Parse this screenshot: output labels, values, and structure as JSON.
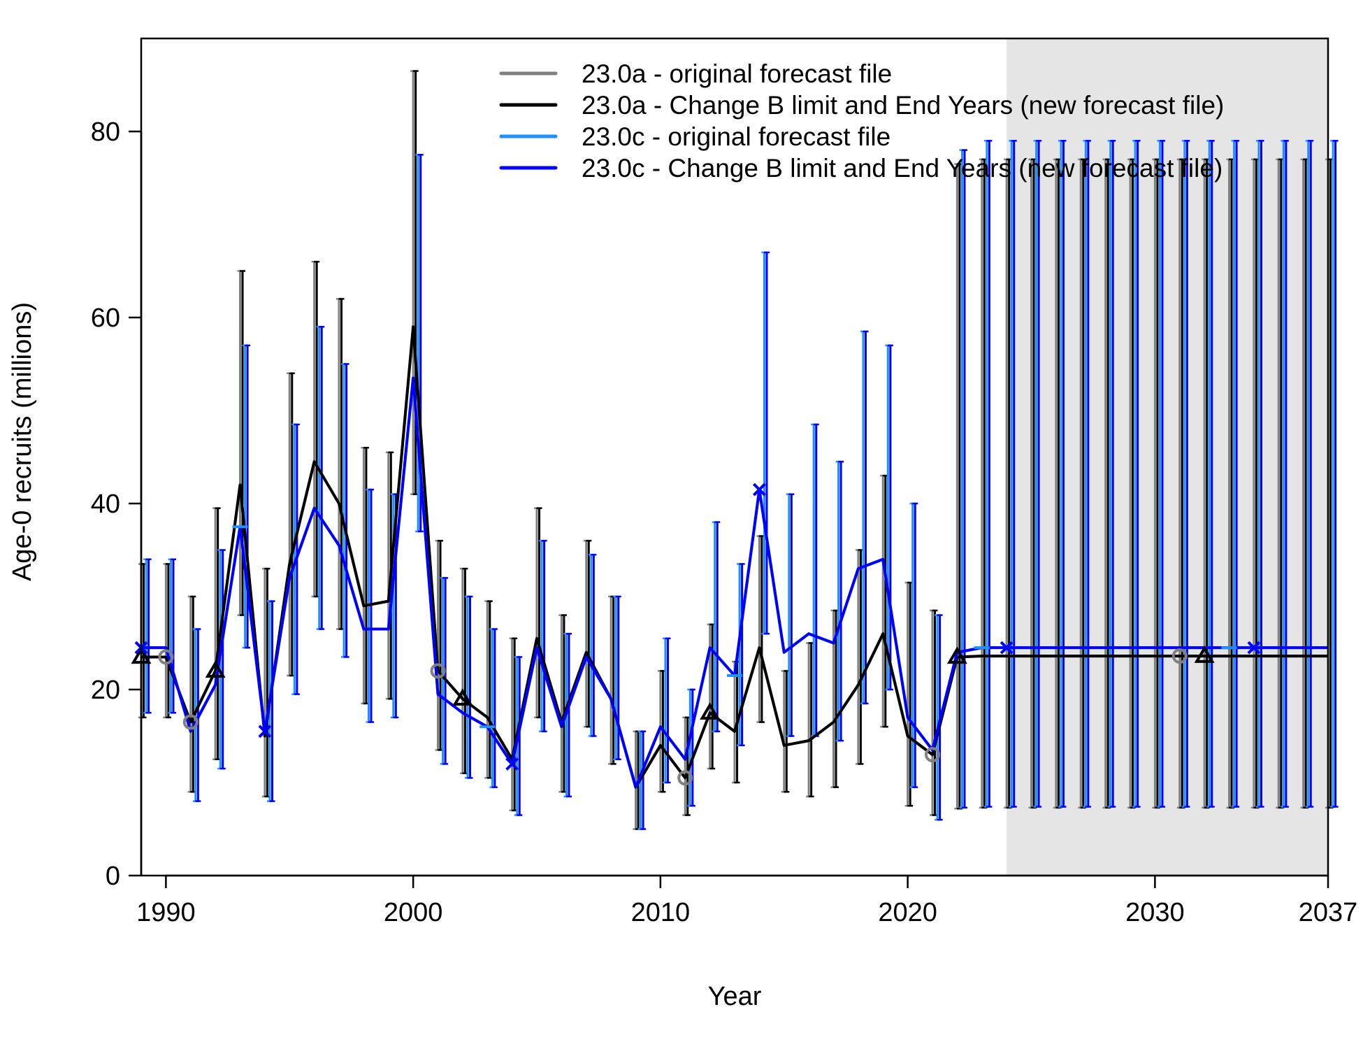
{
  "chart_data": {
    "type": "line",
    "title": "",
    "xlabel": "Year",
    "ylabel": "Age-0 recruits (millions)",
    "xlim": [
      1989,
      2037
    ],
    "ylim": [
      0,
      90
    ],
    "xticks": [
      1990,
      2000,
      2010,
      2020,
      2030,
      2037
    ],
    "xtick_labels": [
      "1990",
      "2000",
      "2010",
      "2020",
      "2030",
      "2037"
    ],
    "yticks": [
      0,
      20,
      40,
      60,
      80
    ],
    "ytick_labels": [
      "0",
      "20",
      "40",
      "60",
      "80"
    ],
    "forecast_region": {
      "from": 2024,
      "to": 2037,
      "color": "#e5e5e5"
    },
    "legend_position": "top-right",
    "grid": false,
    "series": [
      {
        "name": "23.0a - original forecast file",
        "color": "#808080",
        "marker": "circle",
        "marker_years": [
          1990,
          1991,
          2001,
          2011,
          2021,
          2031
        ],
        "offset": 0.0,
        "years": [
          1989,
          1990,
          1991,
          1992,
          1993,
          1994,
          1995,
          1996,
          1997,
          1998,
          1999,
          2000,
          2001,
          2002,
          2003,
          2004,
          2005,
          2006,
          2007,
          2008,
          2009,
          2010,
          2011,
          2012,
          2013,
          2014,
          2015,
          2016,
          2017,
          2018,
          2019,
          2020,
          2021,
          2022,
          2023,
          2024,
          2025,
          2026,
          2027,
          2028,
          2029,
          2030,
          2031,
          2032,
          2033,
          2034,
          2035,
          2036,
          2037
        ],
        "values": [
          23.5,
          23.5,
          16.5,
          22.0,
          42.0,
          15.0,
          33.5,
          44.5,
          40.0,
          29.0,
          29.5,
          59.0,
          22.0,
          19.0,
          17.0,
          12.5,
          25.5,
          16.5,
          24.0,
          19.0,
          9.5,
          14.0,
          10.5,
          17.5,
          15.5,
          24.5,
          14.0,
          14.5,
          16.5,
          20.5,
          26.0,
          15.0,
          13.0,
          23.5,
          23.6,
          23.6,
          23.6,
          23.6,
          23.6,
          23.6,
          23.6,
          23.6,
          23.6,
          23.6,
          23.6,
          23.6,
          23.6,
          23.6,
          23.6
        ],
        "lower": [
          17.0,
          17.0,
          9.0,
          12.5,
          28.0,
          8.5,
          21.5,
          30.0,
          26.5,
          18.5,
          19.0,
          41.0,
          13.5,
          11.0,
          10.5,
          7.0,
          17.0,
          9.0,
          16.0,
          12.0,
          5.0,
          9.0,
          6.5,
          11.5,
          10.0,
          16.5,
          9.0,
          8.5,
          9.5,
          12.0,
          16.0,
          7.5,
          6.5,
          7.2,
          7.3,
          7.3,
          7.3,
          7.3,
          7.3,
          7.3,
          7.3,
          7.3,
          7.3,
          7.3,
          7.3,
          7.3,
          7.3,
          7.3,
          7.3
        ],
        "upper": [
          33.5,
          33.5,
          30.0,
          39.5,
          65.0,
          33.0,
          54.0,
          66.0,
          62.0,
          46.0,
          45.5,
          86.5,
          36.0,
          33.0,
          29.5,
          25.5,
          39.5,
          28.0,
          36.0,
          30.0,
          15.5,
          22.0,
          17.0,
          27.0,
          23.0,
          36.5,
          22.0,
          25.0,
          28.5,
          35.0,
          43.0,
          31.5,
          28.5,
          76.5,
          77.0,
          77.0,
          77.0,
          77.0,
          77.0,
          77.0,
          77.0,
          77.0,
          77.0,
          77.0,
          77.0,
          77.0,
          77.0,
          77.0,
          77.0
        ]
      },
      {
        "name": "23.0a - Change B limit and End Years (new forecast file)",
        "color": "#000000",
        "marker": "triangle",
        "marker_years": [
          1989,
          1992,
          2002,
          2012,
          2022,
          2032
        ],
        "offset": 0.1,
        "years": [
          1989,
          1990,
          1991,
          1992,
          1993,
          1994,
          1995,
          1996,
          1997,
          1998,
          1999,
          2000,
          2001,
          2002,
          2003,
          2004,
          2005,
          2006,
          2007,
          2008,
          2009,
          2010,
          2011,
          2012,
          2013,
          2014,
          2015,
          2016,
          2017,
          2018,
          2019,
          2020,
          2021,
          2022,
          2023,
          2024,
          2025,
          2026,
          2027,
          2028,
          2029,
          2030,
          2031,
          2032,
          2033,
          2034,
          2035,
          2036,
          2037
        ],
        "values": [
          23.5,
          23.5,
          16.5,
          22.0,
          42.0,
          15.0,
          33.5,
          44.5,
          40.0,
          29.0,
          29.5,
          59.0,
          22.0,
          19.0,
          17.0,
          12.5,
          25.5,
          16.5,
          24.0,
          19.0,
          9.5,
          14.0,
          10.5,
          17.5,
          15.5,
          24.5,
          14.0,
          14.5,
          16.5,
          20.5,
          26.0,
          15.0,
          13.0,
          23.5,
          23.6,
          23.6,
          23.6,
          23.6,
          23.6,
          23.6,
          23.6,
          23.6,
          23.6,
          23.6,
          23.6,
          23.6,
          23.6,
          23.6,
          23.6
        ],
        "lower": [
          17.0,
          17.0,
          9.0,
          12.5,
          28.0,
          8.5,
          21.5,
          30.0,
          26.5,
          18.5,
          19.0,
          41.0,
          13.5,
          11.0,
          10.5,
          7.0,
          17.0,
          9.0,
          16.0,
          12.0,
          5.0,
          9.0,
          6.5,
          11.5,
          10.0,
          16.5,
          9.0,
          8.5,
          9.5,
          12.0,
          16.0,
          7.5,
          6.5,
          7.2,
          7.3,
          7.3,
          7.3,
          7.3,
          7.3,
          7.3,
          7.3,
          7.3,
          7.3,
          7.3,
          7.3,
          7.3,
          7.3,
          7.3,
          7.3
        ],
        "upper": [
          33.5,
          33.5,
          30.0,
          39.5,
          65.0,
          33.0,
          54.0,
          66.0,
          62.0,
          46.0,
          45.5,
          86.5,
          36.0,
          33.0,
          29.5,
          25.5,
          39.5,
          28.0,
          36.0,
          30.0,
          15.5,
          22.0,
          17.0,
          27.0,
          23.0,
          36.5,
          22.0,
          25.0,
          28.5,
          35.0,
          43.0,
          31.5,
          28.5,
          76.5,
          77.0,
          77.0,
          77.0,
          77.0,
          77.0,
          77.0,
          77.0,
          77.0,
          77.0,
          77.0,
          77.0,
          77.0,
          77.0,
          77.0,
          77.0
        ]
      },
      {
        "name": "23.0c - original forecast file",
        "color": "#1e90ff",
        "marker": "dash",
        "marker_years": [
          1993,
          2003,
          2013,
          2023,
          2033
        ],
        "offset": 0.2,
        "years": [
          1989,
          1990,
          1991,
          1992,
          1993,
          1994,
          1995,
          1996,
          1997,
          1998,
          1999,
          2000,
          2001,
          2002,
          2003,
          2004,
          2005,
          2006,
          2007,
          2008,
          2009,
          2010,
          2011,
          2012,
          2013,
          2014,
          2015,
          2016,
          2017,
          2018,
          2019,
          2020,
          2021,
          2022,
          2023,
          2024,
          2025,
          2026,
          2027,
          2028,
          2029,
          2030,
          2031,
          2032,
          2033,
          2034,
          2035,
          2036,
          2037
        ],
        "values": [
          24.5,
          24.5,
          15.5,
          20.5,
          37.5,
          15.5,
          32.0,
          39.5,
          35.5,
          26.5,
          26.5,
          53.5,
          19.5,
          17.5,
          16.0,
          12.0,
          24.5,
          16.0,
          23.5,
          19.0,
          9.5,
          16.0,
          12.5,
          24.5,
          21.5,
          41.5,
          24.0,
          26.0,
          25.0,
          33.0,
          34.0,
          17.0,
          13.5,
          24.0,
          24.5,
          24.5,
          24.5,
          24.5,
          24.5,
          24.5,
          24.5,
          24.5,
          24.5,
          24.5,
          24.5,
          24.5,
          24.5,
          24.5,
          24.5
        ],
        "lower": [
          17.5,
          17.5,
          8.0,
          11.5,
          24.5,
          8.0,
          19.5,
          26.5,
          23.5,
          16.5,
          17.0,
          37.0,
          12.0,
          10.5,
          9.5,
          6.5,
          15.5,
          8.5,
          15.0,
          12.5,
          5.0,
          10.0,
          7.5,
          15.5,
          14.0,
          26.0,
          15.0,
          15.0,
          14.5,
          18.5,
          20.0,
          9.5,
          6.0,
          7.3,
          7.4,
          7.4,
          7.4,
          7.4,
          7.4,
          7.4,
          7.4,
          7.4,
          7.4,
          7.4,
          7.4,
          7.4,
          7.4,
          7.4,
          7.4
        ],
        "upper": [
          34.0,
          34.0,
          26.5,
          35.0,
          57.0,
          29.5,
          48.5,
          59.0,
          55.0,
          41.5,
          41.0,
          77.5,
          32.0,
          30.0,
          26.5,
          23.5,
          36.0,
          26.0,
          34.5,
          30.0,
          15.5,
          25.5,
          20.0,
          38.0,
          33.5,
          67.0,
          41.0,
          48.5,
          44.5,
          58.5,
          57.0,
          40.0,
          28.0,
          78.0,
          79.0,
          79.0,
          79.0,
          79.0,
          79.0,
          79.0,
          79.0,
          79.0,
          79.0,
          79.0,
          79.0,
          79.0,
          79.0,
          79.0,
          79.0
        ]
      },
      {
        "name": "23.0c - Change B limit and End Years (new forecast file)",
        "color": "#0000ff",
        "marker": "x",
        "marker_years": [
          1989,
          1994,
          2004,
          2014,
          2024,
          2034
        ],
        "offset": 0.3,
        "years": [
          1989,
          1990,
          1991,
          1992,
          1993,
          1994,
          1995,
          1996,
          1997,
          1998,
          1999,
          2000,
          2001,
          2002,
          2003,
          2004,
          2005,
          2006,
          2007,
          2008,
          2009,
          2010,
          2011,
          2012,
          2013,
          2014,
          2015,
          2016,
          2017,
          2018,
          2019,
          2020,
          2021,
          2022,
          2023,
          2024,
          2025,
          2026,
          2027,
          2028,
          2029,
          2030,
          2031,
          2032,
          2033,
          2034,
          2035,
          2036,
          2037
        ],
        "values": [
          24.5,
          24.5,
          15.5,
          20.5,
          37.5,
          15.5,
          32.0,
          39.5,
          35.5,
          26.5,
          26.5,
          53.5,
          19.5,
          17.5,
          16.0,
          12.0,
          24.5,
          16.0,
          23.5,
          19.0,
          9.5,
          16.0,
          12.5,
          24.5,
          21.5,
          41.5,
          24.0,
          26.0,
          25.0,
          33.0,
          34.0,
          17.0,
          13.5,
          24.0,
          24.5,
          24.5,
          24.5,
          24.5,
          24.5,
          24.5,
          24.5,
          24.5,
          24.5,
          24.5,
          24.5,
          24.5,
          24.5,
          24.5,
          24.5
        ],
        "lower": [
          17.5,
          17.5,
          8.0,
          11.5,
          24.5,
          8.0,
          19.5,
          26.5,
          23.5,
          16.5,
          17.0,
          37.0,
          12.0,
          10.5,
          9.5,
          6.5,
          15.5,
          8.5,
          15.0,
          12.5,
          5.0,
          10.0,
          7.5,
          15.5,
          14.0,
          26.0,
          15.0,
          15.0,
          14.5,
          18.5,
          20.0,
          9.5,
          6.0,
          7.3,
          7.4,
          7.4,
          7.4,
          7.4,
          7.4,
          7.4,
          7.4,
          7.4,
          7.4,
          7.4,
          7.4,
          7.4,
          7.4,
          7.4,
          7.4
        ],
        "upper": [
          34.0,
          34.0,
          26.5,
          35.0,
          57.0,
          29.5,
          48.5,
          59.0,
          55.0,
          41.5,
          41.0,
          77.5,
          32.0,
          30.0,
          26.5,
          23.5,
          36.0,
          26.0,
          34.5,
          30.0,
          15.5,
          25.5,
          20.0,
          38.0,
          33.5,
          67.0,
          41.0,
          48.5,
          44.5,
          58.5,
          57.0,
          40.0,
          28.0,
          78.0,
          79.0,
          79.0,
          79.0,
          79.0,
          79.0,
          79.0,
          79.0,
          79.0,
          79.0,
          79.0,
          79.0,
          79.0,
          79.0,
          79.0,
          79.0
        ]
      }
    ]
  }
}
